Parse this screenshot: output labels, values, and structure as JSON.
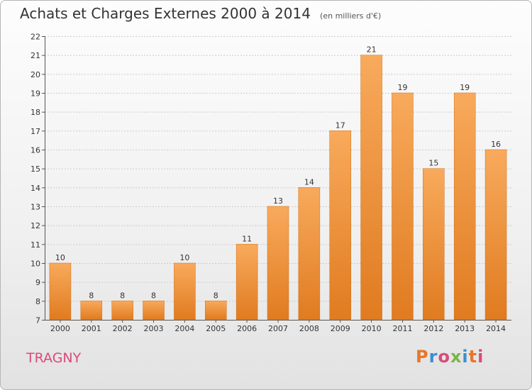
{
  "header": {
    "title": "Achats et Charges Externes 2000 à 2014",
    "unit": "(en milliers d'€)"
  },
  "footer": {
    "commune": "TRAGNY",
    "logo_text": "Proxiti",
    "logo_colors": [
      "#e8762b",
      "#3a8fd0",
      "#d94b7a",
      "#7ab648",
      "#3a8fd0",
      "#e8762b",
      "#d94b7a"
    ]
  },
  "colors": {
    "bar_light": "#f8aa5c",
    "bar_dark": "#e07b20",
    "commune": "#d94b7a"
  },
  "chart_data": {
    "type": "bar",
    "title": "Achats et Charges Externes 2000 à 2014",
    "subtitle": "(en milliers d'€)",
    "categories": [
      "2000",
      "2001",
      "2002",
      "2003",
      "2004",
      "2005",
      "2006",
      "2007",
      "2008",
      "2009",
      "2010",
      "2011",
      "2012",
      "2013",
      "2014"
    ],
    "values": [
      10,
      8,
      8,
      8,
      10,
      8,
      11,
      13,
      14,
      17,
      21,
      19,
      15,
      19,
      16
    ],
    "ylim": [
      7,
      22
    ],
    "yticks": [
      7,
      8,
      9,
      10,
      11,
      12,
      13,
      14,
      15,
      16,
      17,
      18,
      19,
      20,
      21,
      22
    ],
    "grid": true,
    "data_labels": true,
    "xlabel": "",
    "ylabel": ""
  }
}
